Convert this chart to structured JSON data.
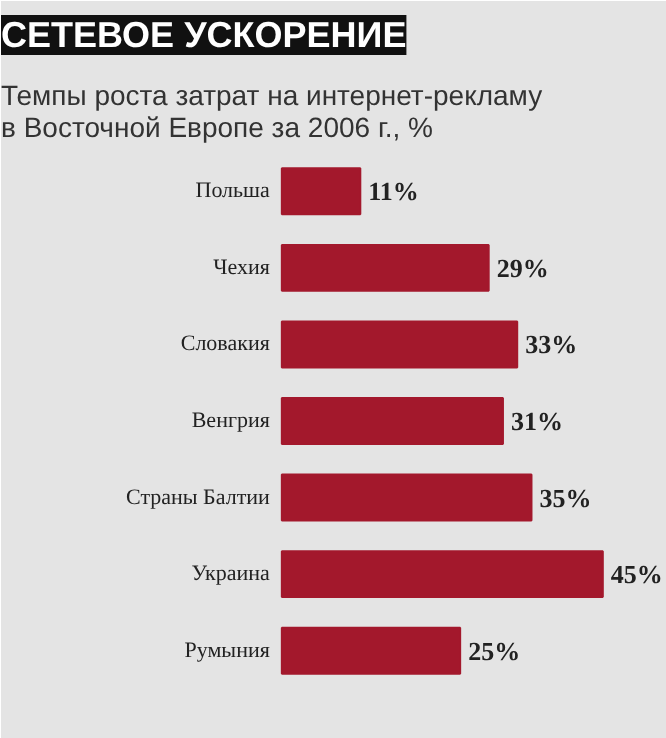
{
  "chart_data": {
    "type": "bar",
    "orientation": "horizontal",
    "title": "СЕТЕВОЕ УСКОРЕНИЕ",
    "subtitle": "Темпы роста затрат на интернет-рекламу\nв Восточной Европе за 2006 г., %",
    "categories": [
      "Польша",
      "Чехия",
      "Словакия",
      "Венгрия",
      "Страны Балтии",
      "Украина",
      "Румыния"
    ],
    "values": [
      11,
      29,
      33,
      31,
      35,
      45,
      25
    ],
    "color": "#a3182c",
    "value_labels": [
      "11%",
      "29%",
      "33%",
      "31%",
      "35%",
      "45%",
      "25%"
    ]
  }
}
